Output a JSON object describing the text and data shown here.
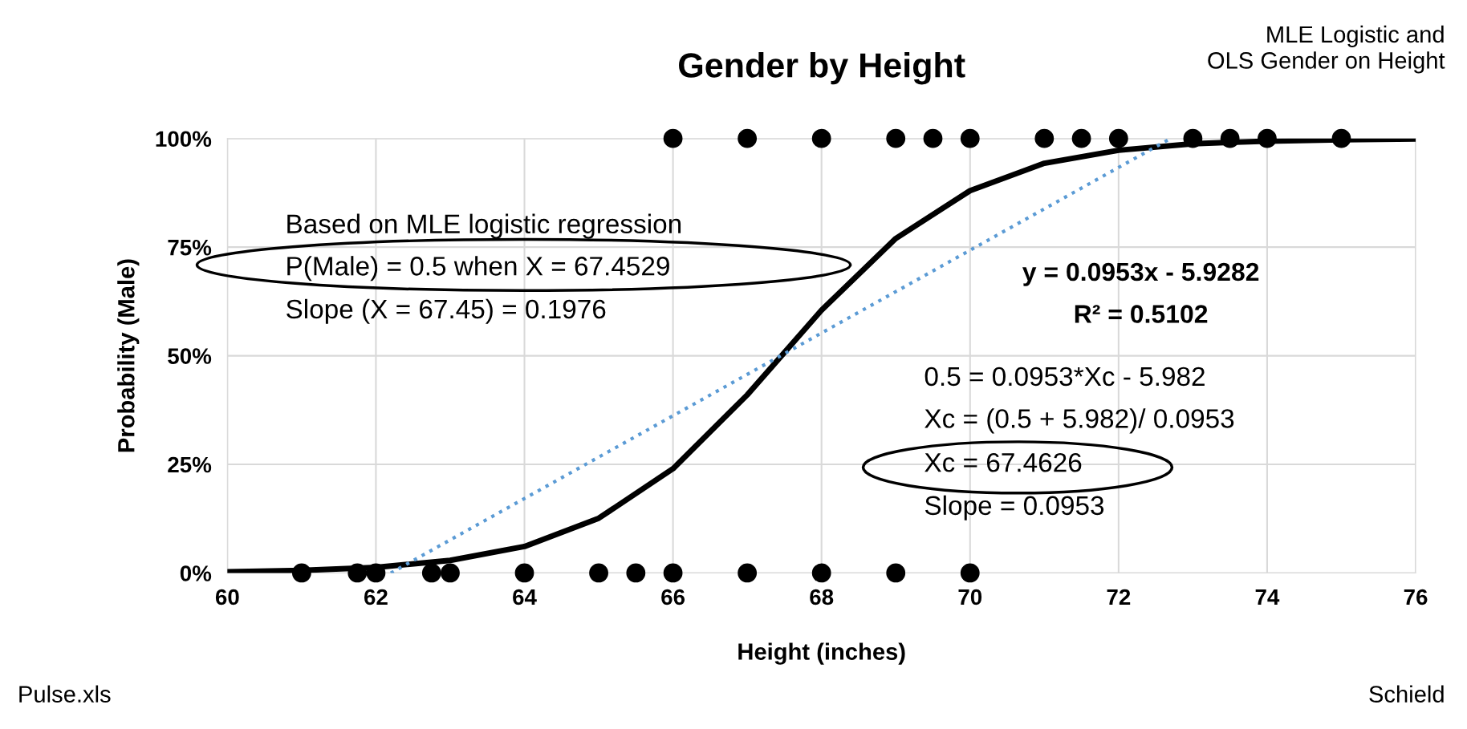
{
  "chart_data": {
    "type": "scatter",
    "title": "Gender by Height",
    "xlabel": "Height (inches)",
    "ylabel": "Probability (Male)",
    "xlim": [
      60,
      76
    ],
    "xticks": [
      60,
      62,
      64,
      66,
      68,
      70,
      72,
      74,
      76
    ],
    "ylim": [
      0,
      100
    ],
    "yticks": [
      {
        "value": 0,
        "label": "0%"
      },
      {
        "value": 25,
        "label": "25%"
      },
      {
        "value": 50,
        "label": "50%"
      },
      {
        "value": 75,
        "label": "75%"
      },
      {
        "value": 100,
        "label": "100%"
      }
    ],
    "grid": true,
    "legend": false,
    "series": [
      {
        "marker": "circle",
        "color": "#000000",
        "x": [
          61,
          61.75,
          62,
          62.75,
          63,
          64,
          65,
          65.5,
          66,
          67,
          68,
          69,
          70,
          66,
          67,
          68,
          69,
          69.5,
          70,
          71,
          71.5,
          72,
          73,
          73.5,
          74,
          75
        ],
        "values": [
          0,
          0,
          0,
          0,
          0,
          0,
          0,
          0,
          0,
          0,
          0,
          0,
          0,
          100,
          100,
          100,
          100,
          100,
          100,
          100,
          100,
          100,
          100,
          100,
          100,
          100
        ]
      },
      {
        "type": "line",
        "color": "#000000",
        "x": [
          60,
          61,
          62,
          63,
          64,
          65,
          66,
          67,
          68,
          69,
          70,
          71,
          72,
          73,
          74,
          75,
          76
        ],
        "values": [
          0.3,
          0.6,
          1.3,
          2.9,
          6.1,
          12.6,
          24,
          41,
          60.5,
          77,
          88,
          94.3,
          97.3,
          98.8,
          99.4,
          99.7,
          99.9
        ]
      },
      {
        "type": "line",
        "color": "#5b9bd5",
        "line_style": "dotted",
        "x": [
          62.2,
          72.7
        ],
        "values": [
          0,
          100
        ]
      }
    ],
    "annotations": [
      "MLE Logistic and\nOLS Gender on Height",
      "Based on MLE logistic regression",
      "P(Male) = 0.5 when X = 67.4529",
      "Slope (X = 67.45) = 0.1976",
      "y = 0.0953x - 5.9282",
      "R² = 0.5102",
      "0.5 = 0.0953*Xc - 5.982",
      "Xc = (0.5 + 5.982)/ 0.0953",
      "Xc = 67.4626",
      "Slope = 0.0953",
      "Pulse.xls",
      "Schield"
    ]
  }
}
